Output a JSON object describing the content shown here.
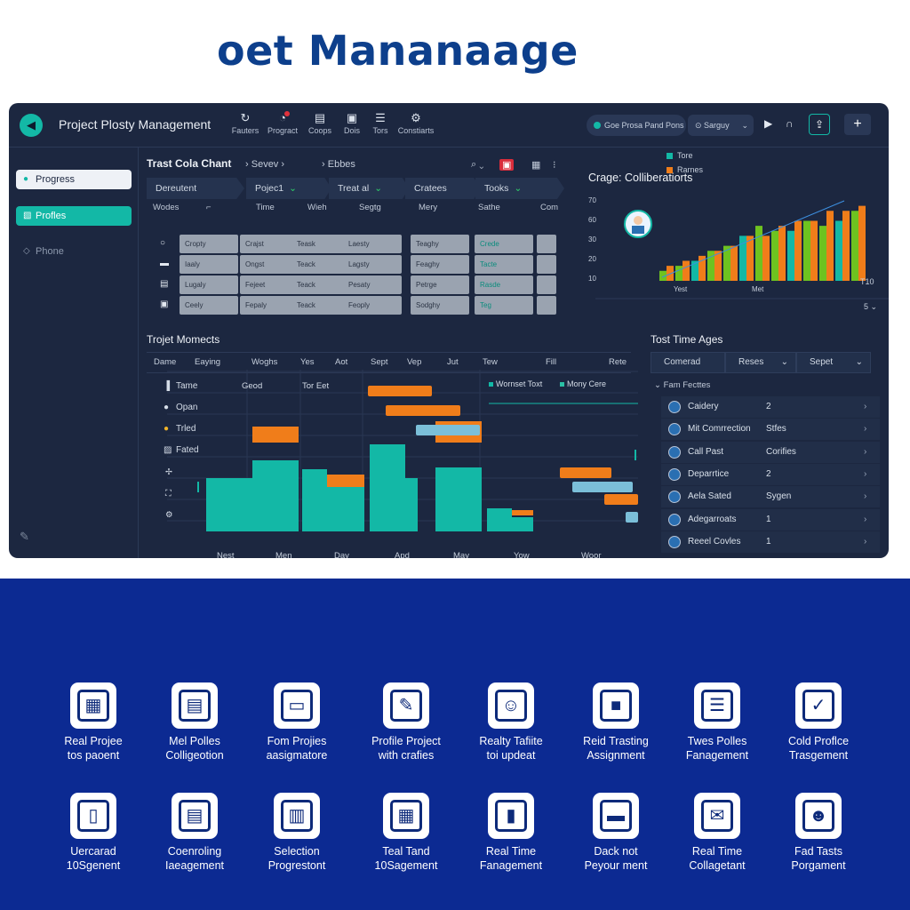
{
  "hero": {
    "title": "oet Mananaage"
  },
  "app": {
    "title": "Project Plosty Management",
    "toolbar": [
      {
        "label": "Fauters",
        "icon": "refresh-icon"
      },
      {
        "label": "Progract",
        "icon": "bell-icon"
      },
      {
        "label": "Coops",
        "icon": "document-icon"
      },
      {
        "label": "Dois",
        "icon": "clipboard-icon"
      },
      {
        "label": "Tors",
        "icon": "list-icon"
      },
      {
        "label": "Constiarts",
        "icon": "gear-icon"
      }
    ],
    "search_label": "Goe Prosa Pand Pons",
    "tag_label": "Sarguy",
    "colors": {
      "bg": "#1c2740",
      "accent": "#13b8a6",
      "orange": "#f07d1a",
      "green": "#6ec320",
      "band": "#0c2a92",
      "title": "#0d3f8c"
    }
  },
  "sidebar": {
    "items": [
      {
        "label": "Progress"
      },
      {
        "label": "Profles"
      },
      {
        "label": "Phone"
      }
    ]
  },
  "table_panel": {
    "title": "Trast Cola Chant",
    "crumbs": [
      "Sevev",
      "Ebbes"
    ],
    "filters": [
      "Dereutent",
      "Pojec1",
      "Treat al",
      "Cratees",
      "Tooks"
    ],
    "columns": [
      "Wodes",
      "⌐",
      "Time",
      "Wieh",
      "Segtg",
      "Mery",
      "Sathe",
      "Com"
    ],
    "rows": [
      [
        "Cropty",
        "Crajst",
        "Teask",
        "Laesty",
        "Teaghy",
        "Crede"
      ],
      [
        "Iaaly",
        "Ongst",
        "Teack",
        "Lagsty",
        "Feaghy",
        "Tacte"
      ],
      [
        "Lugaly",
        "Fejeet",
        "Teack",
        "Pesaty",
        "Petrge",
        "Rasde"
      ],
      [
        "Ceely",
        "Fepaly",
        "Teack",
        "Feoply",
        "Sodghy",
        "Teg"
      ]
    ]
  },
  "collab_chart": {
    "title": "Crage: Colliberatiorts",
    "legend": [
      "Tore",
      "Rarnes"
    ],
    "yticks": [
      "70",
      "60",
      "30",
      "20",
      "10"
    ],
    "xticks": [
      "Yest",
      "Met"
    ],
    "corner_label": "T10",
    "footer": [
      "5"
    ]
  },
  "chart_data": {
    "type": "bar",
    "title": "Crage: Colliberatiorts",
    "series": [
      {
        "name": "Tore",
        "color": "#6ec320",
        "values": [
          2,
          3,
          4,
          6,
          7,
          9,
          11,
          10,
          10,
          12,
          11,
          12,
          14
        ]
      },
      {
        "name": "Rarnes",
        "color": "#f07d1a",
        "values": [
          3,
          4,
          5,
          6,
          7,
          9,
          9,
          11,
          12,
          12,
          14,
          14,
          15
        ]
      }
    ],
    "ylim": [
      0,
      16
    ]
  },
  "gantt": {
    "title": "Trojet Momects",
    "headers": [
      "Dame",
      "Eaying",
      "Woghs",
      "Yes",
      "Aot",
      "Sept",
      "Vep",
      "Jut",
      "Tew",
      "Fill",
      "Rete"
    ],
    "rows": [
      {
        "label": "Tame",
        "col2": "Geod",
        "col3": "Tor Eet"
      },
      {
        "label": "Opan"
      },
      {
        "label": "Trled"
      },
      {
        "label": "Fated"
      }
    ],
    "legend": [
      "Wornset Toxt",
      "Mony Cere"
    ],
    "months": [
      "Nest",
      "Men",
      "Day",
      "Apd",
      "May",
      "Yow",
      "Woor"
    ]
  },
  "tta": {
    "title": "Tost Time Ages",
    "headers": [
      "Comerad",
      "Reses",
      "Sepet"
    ],
    "section": "Fam Fecttes",
    "rows": [
      {
        "name": "Caidery",
        "value": "2"
      },
      {
        "name": "Mit Comrrection",
        "value": "Stfes"
      },
      {
        "name": "Call Past",
        "value": "Corifies"
      },
      {
        "name": "Deparrtice",
        "value": "2"
      },
      {
        "name": "Aela Sated",
        "value": "Sygen"
      },
      {
        "name": "Adegarroats",
        "value": "1"
      },
      {
        "name": "Reeel Covles",
        "value": "1"
      }
    ]
  },
  "features": [
    {
      "line1": "Real Projee",
      "line2": "tos paoent",
      "icon": "calendar-grid-icon"
    },
    {
      "line1": "Mel Polles",
      "line2": "Colligeotion",
      "icon": "calendar-block-icon"
    },
    {
      "line1": "Fom Projies",
      "line2": "aasigmatore",
      "icon": "clipboard-chat-icon"
    },
    {
      "line1": "Profile Project",
      "line2": "with crafies",
      "icon": "edit-document-icon"
    },
    {
      "line1": "Realty Tafiite",
      "line2": "toi updeat",
      "icon": "worker-profile-icon"
    },
    {
      "line1": "Reid Trasting",
      "line2": "Assignment",
      "icon": "briefcase-icon"
    },
    {
      "line1": "Twes Polles",
      "line2": "Fanagement",
      "icon": "task-list-icon"
    },
    {
      "line1": "Cold Proflce",
      "line2": "Trasgement",
      "icon": "calendar-check-icon"
    },
    {
      "line1": "Uercarad",
      "line2": "10Sgenent",
      "icon": "file-icon"
    },
    {
      "line1": "Coenroling",
      "line2": "Iaeagement",
      "icon": "documents-icon"
    },
    {
      "line1": "Selection",
      "line2": "Progrestont",
      "icon": "monitor-list-icon"
    },
    {
      "line1": "Teal Tand",
      "line2": "10Sagement",
      "icon": "dashboard-icon"
    },
    {
      "line1": "Real Time",
      "line2": "Fanagement",
      "icon": "bar-chart-icon"
    },
    {
      "line1": "Dack not",
      "line2": "Peyour ment",
      "icon": "chat-bubble-icon"
    },
    {
      "line1": "Real Time",
      "line2": "Collagetant",
      "icon": "mail-icon"
    },
    {
      "line1": "Fad Tasts",
      "line2": "Porgament",
      "icon": "team-icon"
    }
  ]
}
